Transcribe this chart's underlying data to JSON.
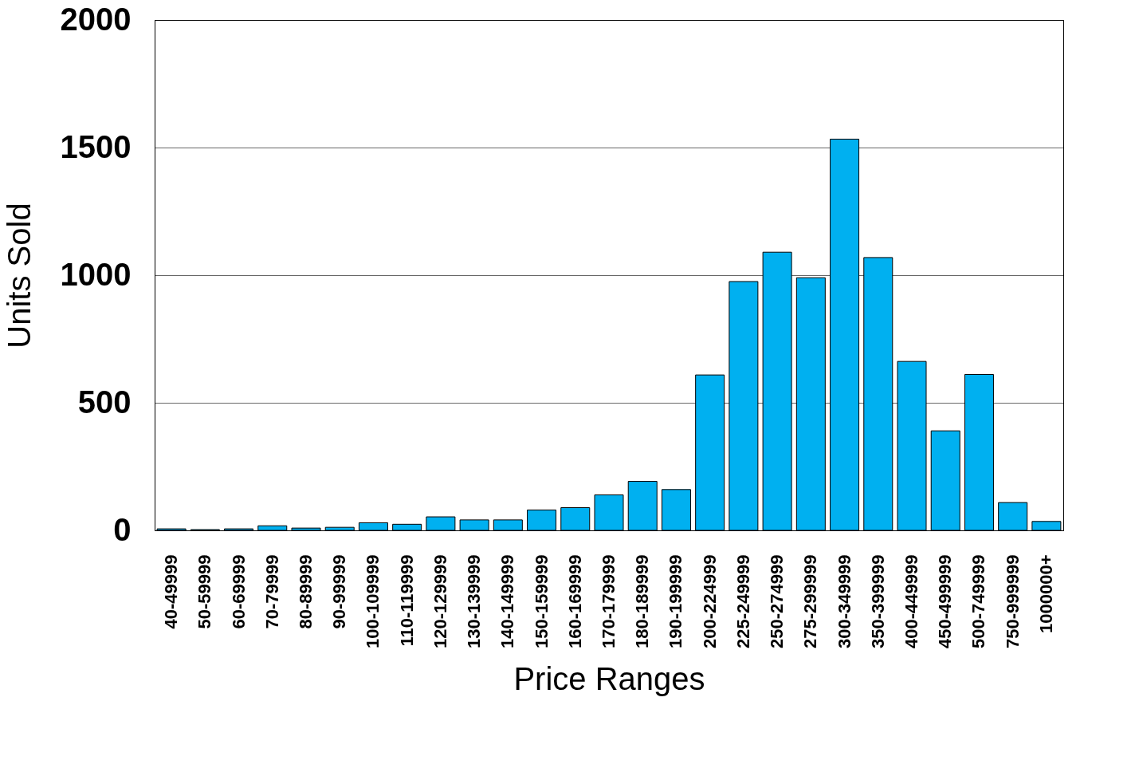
{
  "chart_data": {
    "type": "bar",
    "xlabel": "Price Ranges",
    "ylabel": "Units Sold",
    "categories": [
      "40-49999",
      "50-59999",
      "60-69999",
      "70-79999",
      "80-89999",
      "90-99999",
      "100-109999",
      "110-119999",
      "120-129999",
      "130-139999",
      "140-149999",
      "150-159999",
      "160-169999",
      "170-179999",
      "180-189999",
      "190-199999",
      "200-224999",
      "225-249999",
      "250-274999",
      "275-299999",
      "300-349999",
      "350-399999",
      "400-449999",
      "450-499999",
      "500-749999",
      "750-999999",
      "1000000+"
    ],
    "values": [
      6,
      3,
      6,
      18,
      9,
      12,
      30,
      24,
      53,
      41,
      41,
      80,
      89,
      139,
      192,
      160,
      609,
      975,
      1090,
      990,
      1533,
      1069,
      662,
      390,
      611,
      109,
      35
    ],
    "color": "#00b0f0",
    "ylim": [
      0,
      2000
    ],
    "yticks": [
      0,
      500,
      1000,
      1500,
      2000
    ],
    "grid": "y"
  }
}
